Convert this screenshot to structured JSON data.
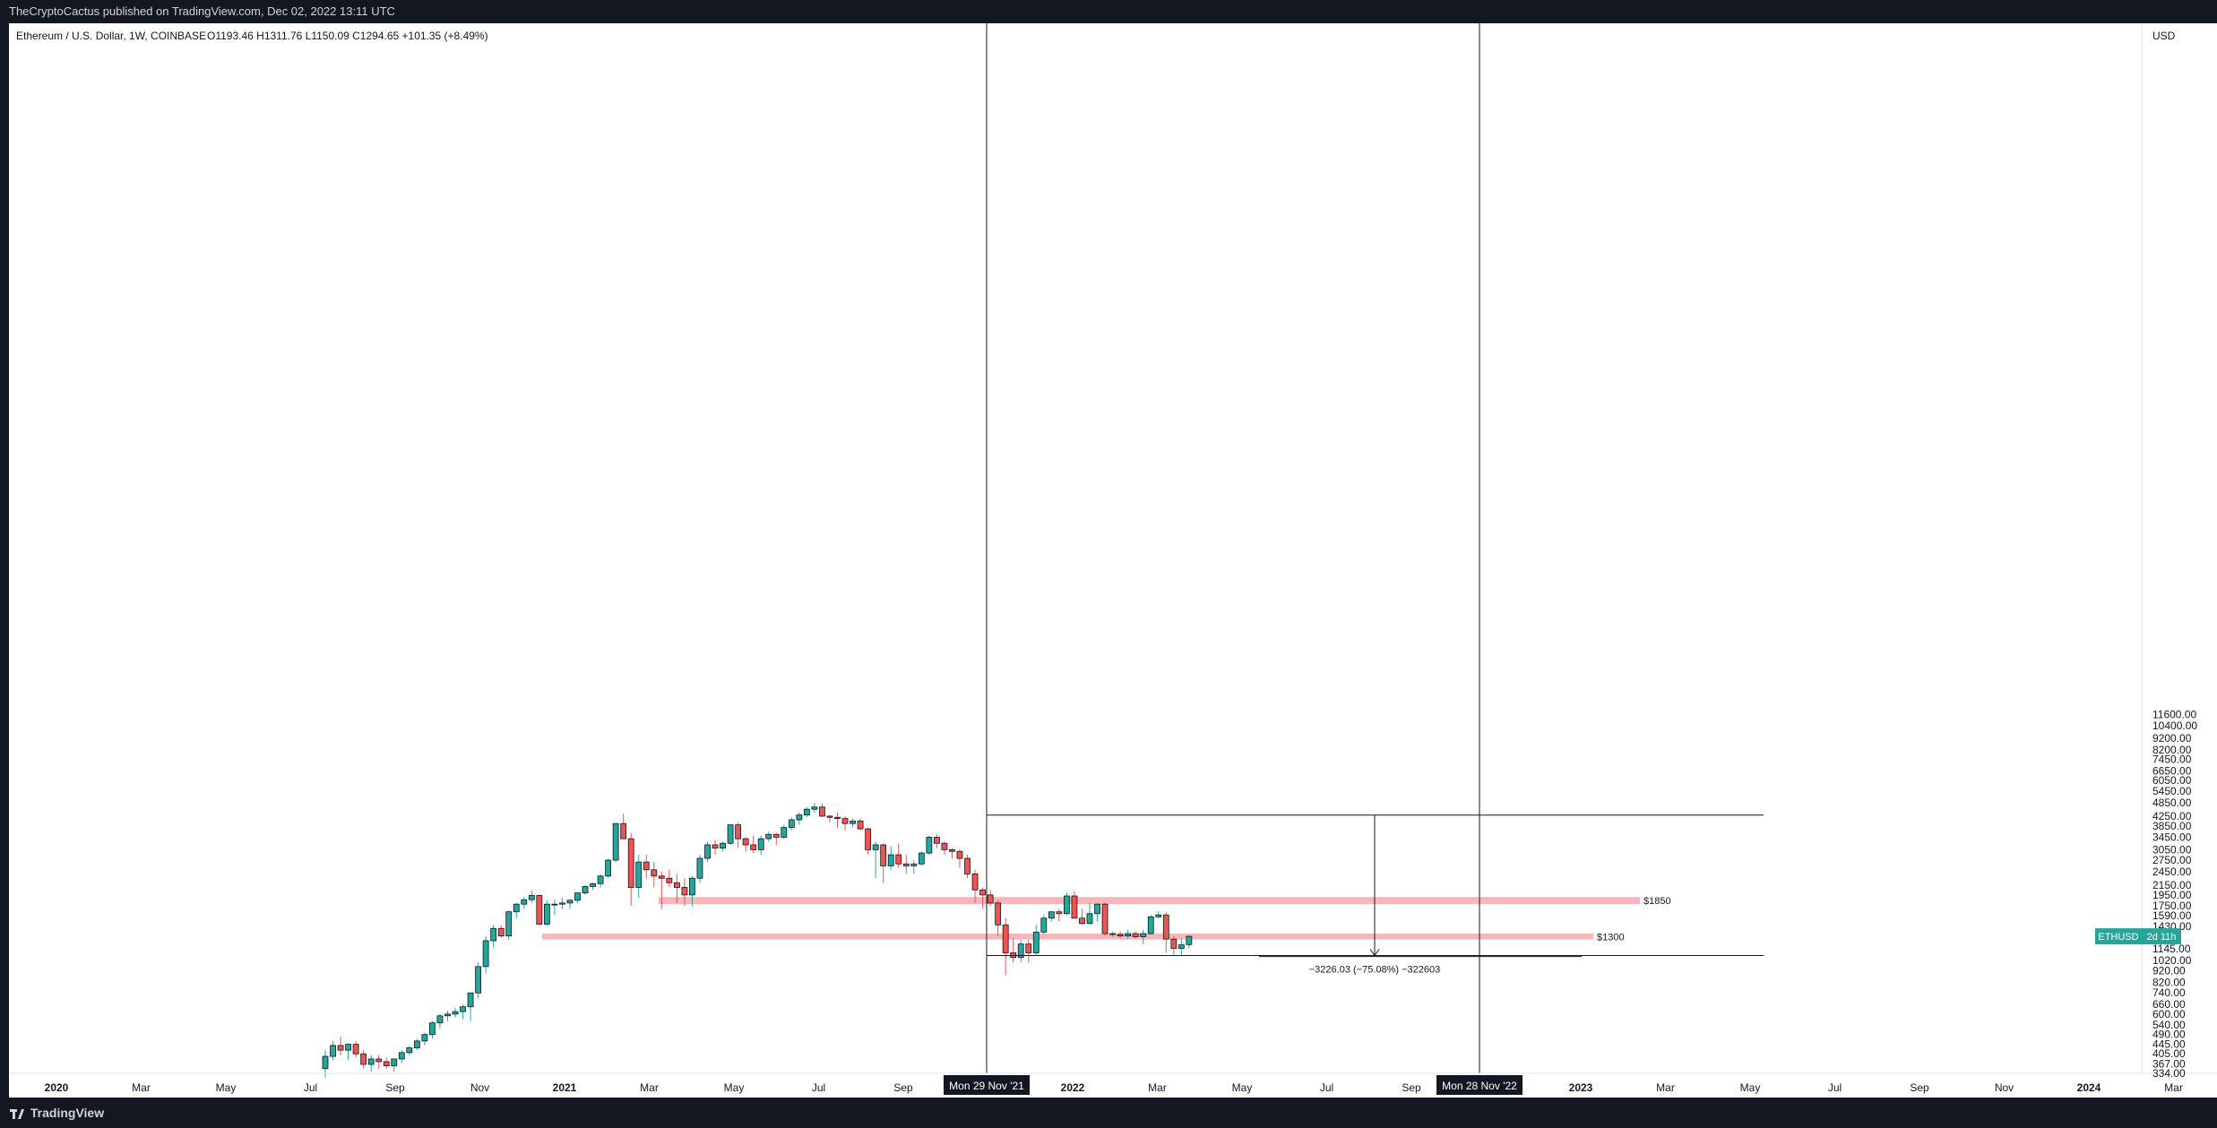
{
  "header": {
    "publisher_line": "TheCryptoCactus published on TradingView.com, Dec 02, 2022 13:11 UTC"
  },
  "footer": {
    "brand": "TradingView"
  },
  "chart_data": {
    "type": "candlestick",
    "title": "Ethereum / U.S. Dollar, 1W, COINBASE",
    "ohlc_readout": "O1193.46  H1311.76  L1150.09  C1294.65  +101.35 (+8.49%)",
    "currency_label": "USD",
    "symbol_badge": "ETHUSD",
    "countdown_badge": "2d 11h",
    "y_scale": "log",
    "y_ticks": [
      "11600.00",
      "10400.00",
      "9200.00",
      "8200.00",
      "7450.00",
      "6650.00",
      "6050.00",
      "5450.00",
      "4850.00",
      "4250.00",
      "3850.00",
      "3450.00",
      "3050.00",
      "2750.00",
      "2450.00",
      "2150.00",
      "1950.00",
      "1750.00",
      "1590.00",
      "1430.00",
      "1145.00",
      "1020.00",
      "920.00",
      "820.00",
      "740.00",
      "660.00",
      "600.00",
      "540.00",
      "490.00",
      "445.00",
      "405.00",
      "367.00",
      "334.00"
    ],
    "x_ticks": [
      "2020",
      "Mar",
      "May",
      "Jul",
      "Sep",
      "Nov",
      "2021",
      "Mar",
      "May",
      "Jul",
      "Sep",
      "Nov",
      "2022",
      "Mar",
      "May",
      "Jul",
      "Sep",
      "Nov",
      "2023",
      "Mar",
      "May",
      "Jul",
      "Sep",
      "Nov",
      "2024",
      "Mar"
    ],
    "crosshair_labels": [
      "Mon 29 Nov '21",
      "Mon 28 Nov '22"
    ],
    "zones": [
      {
        "label": "$1850",
        "low": 1780,
        "high": 1910
      },
      {
        "label": "$1300",
        "low": 1255,
        "high": 1330
      }
    ],
    "measure_label": "−3226.03 (−75.08%) −322603",
    "measure_from": 4297,
    "measure_to": 1071,
    "series": [
      {
        "values": [
          [
            350,
            420,
            320,
            395
          ],
          [
            395,
            460,
            380,
            440
          ],
          [
            440,
            480,
            400,
            420
          ],
          [
            420,
            450,
            380,
            445
          ],
          [
            445,
            460,
            390,
            405
          ],
          [
            405,
            420,
            350,
            365
          ],
          [
            365,
            400,
            340,
            385
          ],
          [
            385,
            400,
            350,
            375
          ],
          [
            375,
            390,
            350,
            360
          ],
          [
            360,
            380,
            340,
            385
          ],
          [
            385,
            420,
            370,
            410
          ],
          [
            410,
            440,
            400,
            430
          ],
          [
            430,
            470,
            420,
            460
          ],
          [
            460,
            500,
            440,
            490
          ],
          [
            490,
            560,
            470,
            550
          ],
          [
            550,
            600,
            520,
            590
          ],
          [
            590,
            620,
            560,
            600
          ],
          [
            600,
            640,
            580,
            615
          ],
          [
            615,
            660,
            570,
            645
          ],
          [
            645,
            680,
            560,
            740
          ],
          [
            740,
            1000,
            700,
            960
          ],
          [
            960,
            1300,
            900,
            1240
          ],
          [
            1240,
            1450,
            1150,
            1400
          ],
          [
            1400,
            1450,
            1280,
            1300
          ],
          [
            1300,
            1680,
            1250,
            1650
          ],
          [
            1650,
            1800,
            1550,
            1780
          ],
          [
            1780,
            1920,
            1700,
            1860
          ],
          [
            1860,
            2040,
            1800,
            1940
          ],
          [
            1940,
            1960,
            1560,
            1460
          ],
          [
            1460,
            1850,
            1440,
            1780
          ],
          [
            1780,
            1860,
            1600,
            1780
          ],
          [
            1780,
            1900,
            1700,
            1800
          ],
          [
            1800,
            1870,
            1700,
            1850
          ],
          [
            1850,
            2000,
            1800,
            1990
          ],
          [
            1990,
            2150,
            1950,
            2120
          ],
          [
            2120,
            2200,
            2050,
            2180
          ],
          [
            2180,
            2400,
            2100,
            2350
          ],
          [
            2350,
            2800,
            2300,
            2750
          ],
          [
            2750,
            3500,
            2700,
            3950
          ],
          [
            3950,
            4350,
            3500,
            3400
          ],
          [
            3400,
            3600,
            1750,
            2100
          ],
          [
            2100,
            2900,
            1900,
            2700
          ],
          [
            2700,
            2900,
            2300,
            2500
          ],
          [
            2500,
            2700,
            2100,
            2350
          ],
          [
            2350,
            2450,
            1700,
            2300
          ],
          [
            2300,
            2500,
            2100,
            2200
          ],
          [
            2200,
            2400,
            1800,
            2100
          ],
          [
            2100,
            2300,
            1750,
            1950
          ],
          [
            1950,
            2350,
            1750,
            2300
          ],
          [
            2300,
            2900,
            2200,
            2800
          ],
          [
            2800,
            3300,
            2700,
            3200
          ],
          [
            3200,
            3350,
            2900,
            3100
          ],
          [
            3100,
            3300,
            3000,
            3250
          ],
          [
            3250,
            3700,
            3200,
            3900
          ],
          [
            3900,
            4000,
            3100,
            3400
          ],
          [
            3400,
            3450,
            3000,
            3200
          ],
          [
            3200,
            3500,
            2950,
            3050
          ],
          [
            3050,
            3500,
            2900,
            3400
          ],
          [
            3400,
            3650,
            3300,
            3550
          ],
          [
            3550,
            3600,
            3200,
            3450
          ],
          [
            3450,
            3900,
            3400,
            3800
          ],
          [
            3800,
            4200,
            3700,
            4100
          ],
          [
            4100,
            4400,
            3900,
            4300
          ],
          [
            4300,
            4650,
            4200,
            4550
          ],
          [
            4550,
            4850,
            4400,
            4650
          ],
          [
            4650,
            4800,
            4200,
            4250
          ],
          [
            4250,
            4300,
            4000,
            4200
          ],
          [
            4200,
            4400,
            3800,
            4150
          ],
          [
            4150,
            4250,
            3700,
            3950
          ],
          [
            3950,
            4150,
            3800,
            4050
          ],
          [
            4050,
            4150,
            3700,
            3750
          ],
          [
            3750,
            3800,
            2900,
            3050
          ],
          [
            3050,
            3300,
            2300,
            3200
          ],
          [
            3200,
            3250,
            2200,
            2600
          ],
          [
            2600,
            3150,
            2500,
            2900
          ],
          [
            2900,
            3250,
            2550,
            2650
          ],
          [
            2650,
            2900,
            2400,
            2600
          ],
          [
            2600,
            2750,
            2400,
            2650
          ],
          [
            2650,
            3000,
            2600,
            2950
          ],
          [
            2950,
            3500,
            2900,
            3450
          ],
          [
            3450,
            3550,
            3100,
            3250
          ],
          [
            3250,
            3300,
            2900,
            3050
          ],
          [
            3050,
            3100,
            2800,
            3000
          ],
          [
            3000,
            3050,
            2550,
            2800
          ],
          [
            2800,
            2900,
            2300,
            2400
          ],
          [
            2400,
            2500,
            1800,
            2050
          ],
          [
            2050,
            2100,
            1700,
            1950
          ],
          [
            1950,
            2050,
            1750,
            1800
          ],
          [
            1800,
            1850,
            1300,
            1450
          ],
          [
            1450,
            1550,
            880,
            1100
          ],
          [
            1100,
            1280,
            1000,
            1050
          ],
          [
            1050,
            1250,
            1000,
            1200
          ],
          [
            1200,
            1250,
            1000,
            1100
          ],
          [
            1100,
            1450,
            1080,
            1350
          ],
          [
            1350,
            1600,
            1320,
            1550
          ],
          [
            1550,
            1650,
            1500,
            1650
          ],
          [
            1650,
            1700,
            1500,
            1620
          ],
          [
            1620,
            2000,
            1600,
            1930
          ],
          [
            1930,
            2020,
            1550,
            1550
          ],
          [
            1550,
            1700,
            1450,
            1470
          ],
          [
            1470,
            1800,
            1450,
            1620
          ],
          [
            1620,
            1800,
            1500,
            1780
          ],
          [
            1780,
            1810,
            1300,
            1330
          ],
          [
            1330,
            1360,
            1290,
            1320
          ],
          [
            1320,
            1360,
            1270,
            1300
          ],
          [
            1300,
            1380,
            1260,
            1330
          ],
          [
            1330,
            1360,
            1270,
            1290
          ],
          [
            1290,
            1380,
            1200,
            1330
          ],
          [
            1330,
            1600,
            1320,
            1570
          ],
          [
            1570,
            1660,
            1550,
            1600
          ],
          [
            1600,
            1640,
            1100,
            1260
          ],
          [
            1260,
            1300,
            1080,
            1150
          ],
          [
            1150,
            1270,
            1080,
            1190
          ],
          [
            1193.46,
            1311.76,
            1150.09,
            1294.65
          ]
        ]
      }
    ]
  }
}
